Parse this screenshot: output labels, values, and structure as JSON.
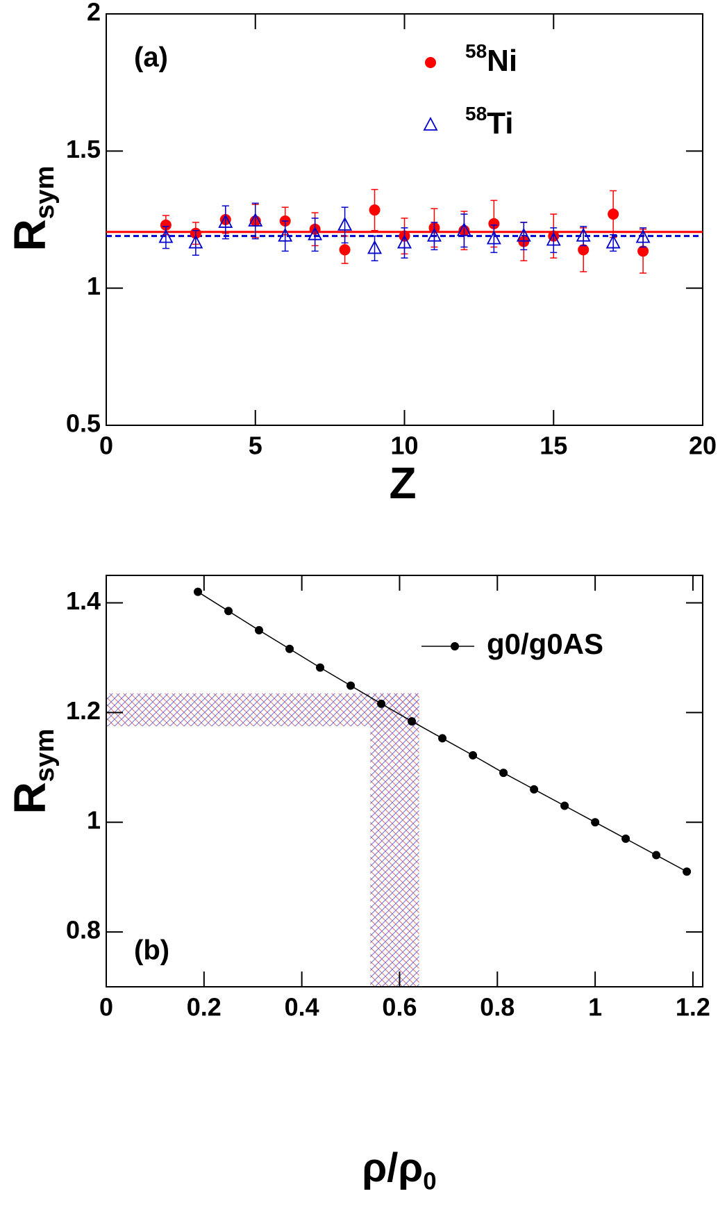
{
  "chart_data": [
    {
      "type": "scatter",
      "panel_label": "(a)",
      "xlabel": "Z",
      "ylabel": {
        "text": "R",
        "subscript": "sym"
      },
      "xlim": [
        0,
        20
      ],
      "ylim": [
        0.5,
        2
      ],
      "xticks": [
        0,
        5,
        10,
        15,
        20
      ],
      "yticks": [
        0.5,
        1,
        1.5,
        2
      ],
      "series": [
        {
          "name": "Ni",
          "name_superscript": "58",
          "color": "#ff0000",
          "marker": "circle",
          "x": [
            2,
            3,
            4,
            5,
            6,
            7,
            8,
            9,
            10,
            11,
            12,
            13,
            14,
            15,
            16,
            17,
            18
          ],
          "values": [
            1.23,
            1.2,
            1.25,
            1.245,
            1.245,
            1.215,
            1.14,
            1.285,
            1.19,
            1.22,
            1.21,
            1.235,
            1.17,
            1.19,
            1.14,
            1.27,
            1.135
          ],
          "errors": [
            0.035,
            0.04,
            0.05,
            0.06,
            0.05,
            0.06,
            0.05,
            0.075,
            0.065,
            0.07,
            0.07,
            0.085,
            0.07,
            0.08,
            0.08,
            0.085,
            0.08
          ]
        },
        {
          "name": "Ti",
          "name_superscript": "58",
          "color": "#0000cc",
          "marker": "open-triangle",
          "x": [
            2,
            3,
            4,
            5,
            6,
            7,
            8,
            9,
            10,
            11,
            12,
            13,
            14,
            15,
            16,
            17,
            18
          ],
          "values": [
            1.185,
            1.165,
            1.24,
            1.245,
            1.19,
            1.195,
            1.23,
            1.145,
            1.165,
            1.19,
            1.21,
            1.18,
            1.19,
            1.175,
            1.19,
            1.165,
            1.185
          ],
          "errors": [
            0.04,
            0.045,
            0.06,
            0.065,
            0.055,
            0.06,
            0.065,
            0.045,
            0.055,
            0.05,
            0.06,
            0.05,
            0.05,
            0.045,
            0.035,
            0.03,
            0.035
          ]
        }
      ],
      "reference_lines": [
        {
          "value": 1.205,
          "color": "#ff0000",
          "dashed": false
        },
        {
          "value": 1.19,
          "color": "#0000cc",
          "dashed": true
        }
      ]
    },
    {
      "type": "line",
      "panel_label": "(b)",
      "xlabel": {
        "text": "ρ/ρ",
        "subscript": "0"
      },
      "ylabel": {
        "text": "R",
        "subscript": "sym"
      },
      "xlim": [
        0,
        1.22
      ],
      "ylim": [
        0.7,
        1.45
      ],
      "xticks": [
        0,
        0.2,
        0.4,
        0.6,
        0.8,
        1,
        1.2
      ],
      "yticks": [
        0.8,
        1,
        1.2,
        1.4
      ],
      "shaded_region": {
        "xlim": [
          0.54,
          0.64
        ],
        "ylim": [
          1.175,
          1.235
        ]
      },
      "series": [
        {
          "name": "g0/g0AS",
          "color": "#000000",
          "x": [
            0.1875,
            0.25,
            0.3125,
            0.375,
            0.4375,
            0.5,
            0.5625,
            0.625,
            0.6875,
            0.75,
            0.8125,
            0.875,
            0.9375,
            1.0,
            1.0625,
            1.125,
            1.1875
          ],
          "values": [
            1.42,
            1.385,
            1.35,
            1.316,
            1.282,
            1.249,
            1.216,
            1.184,
            1.153,
            1.122,
            1.09,
            1.06,
            1.03,
            1.0,
            0.97,
            0.94,
            0.91
          ]
        }
      ]
    }
  ]
}
